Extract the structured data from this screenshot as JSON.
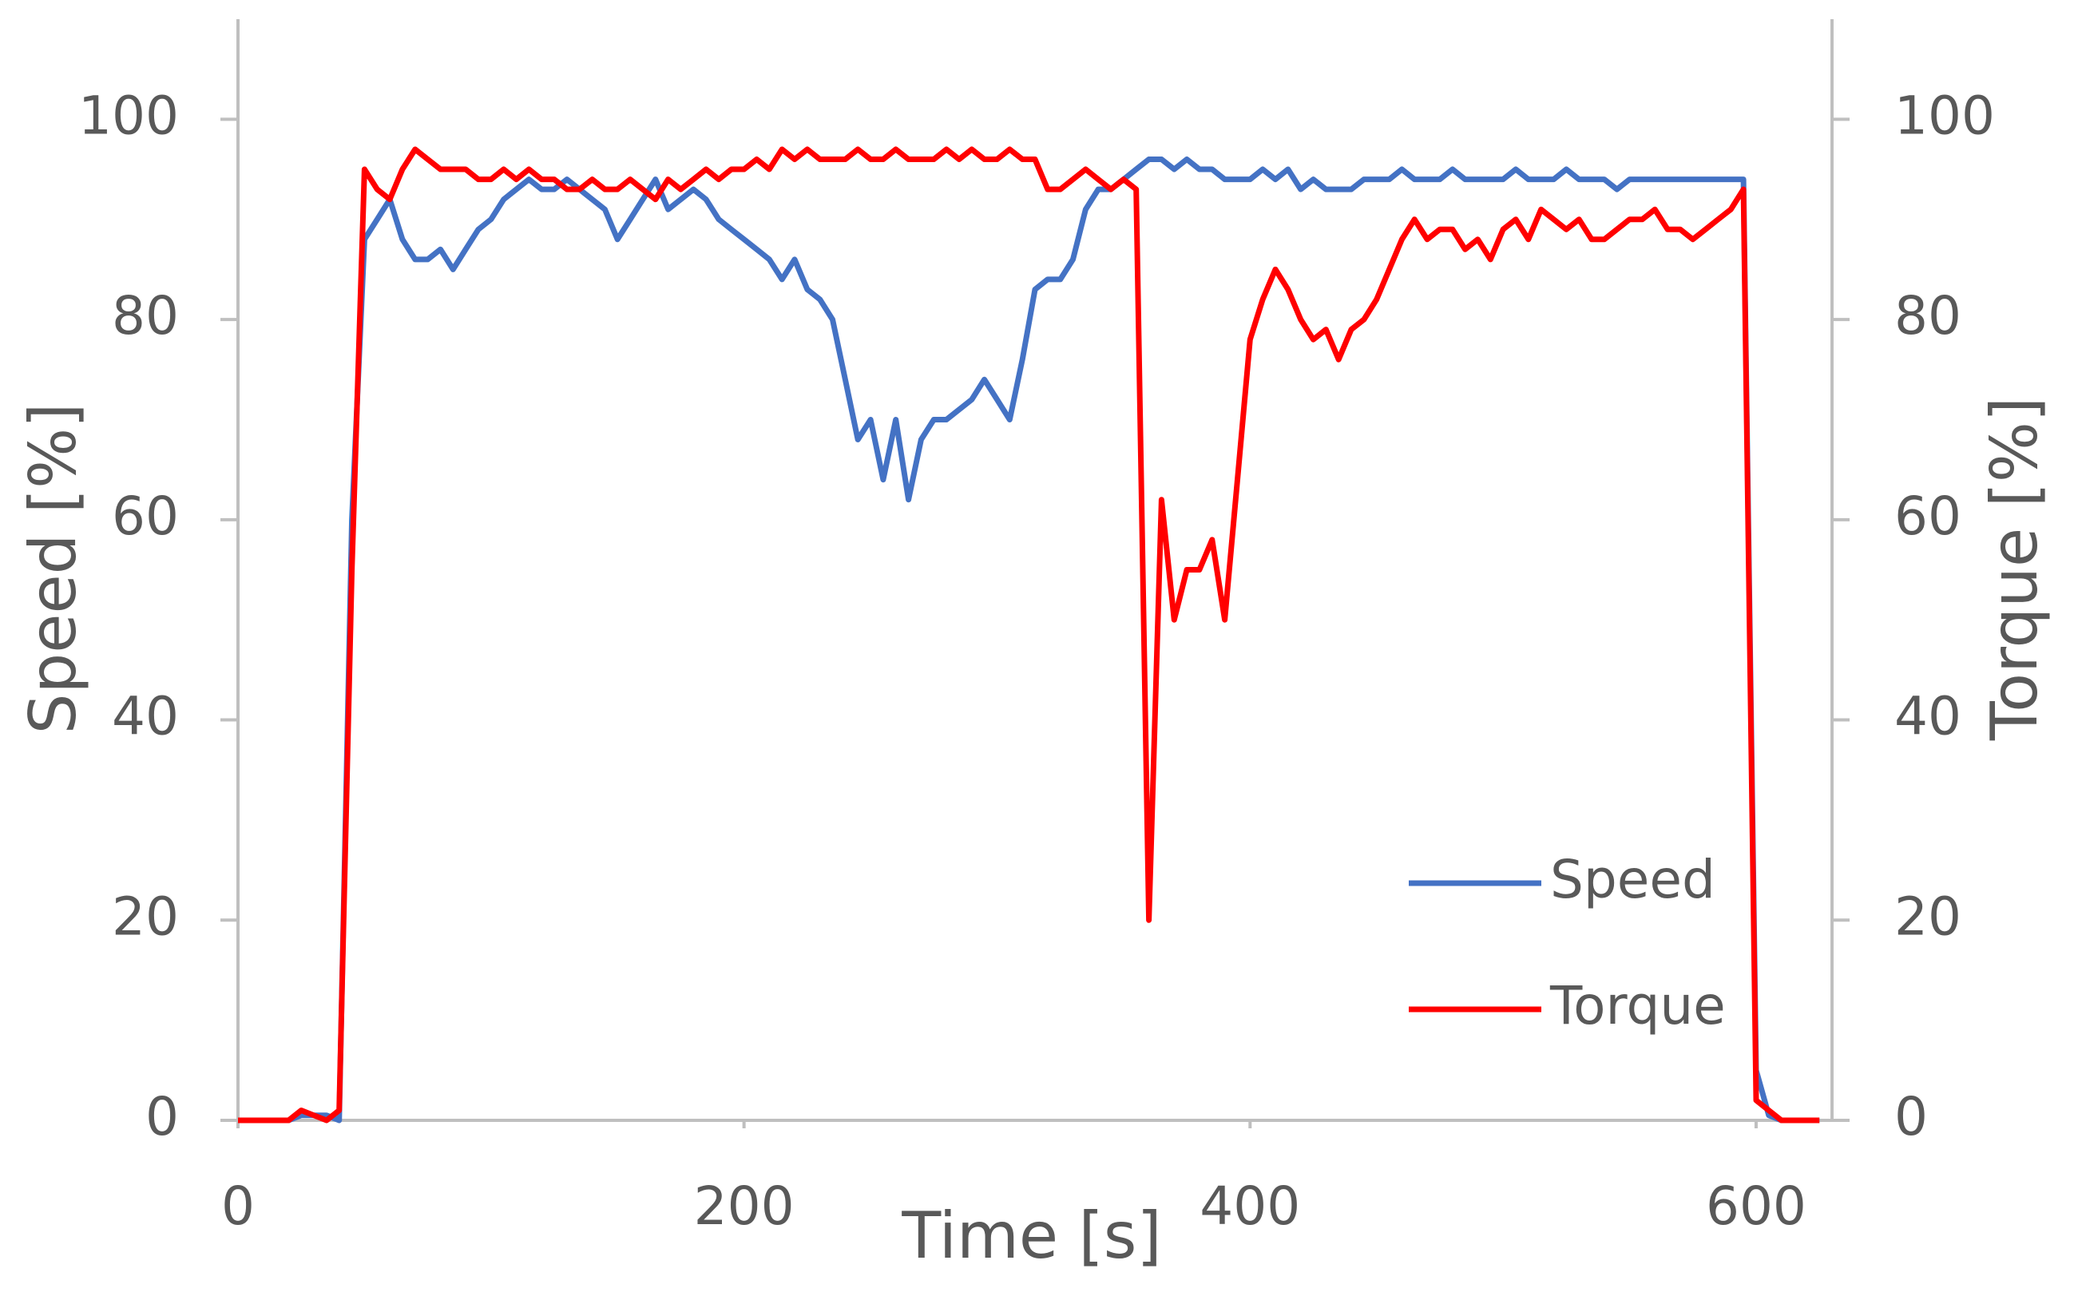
{
  "chart_data": {
    "type": "line",
    "x_label": "Time [s]",
    "y_label": "Speed [%]",
    "y2_label": "Torque [%]",
    "x": [
      0,
      5,
      10,
      15,
      20,
      25,
      30,
      35,
      40,
      45,
      50,
      55,
      60,
      65,
      70,
      75,
      80,
      85,
      90,
      95,
      100,
      105,
      110,
      115,
      120,
      125,
      130,
      135,
      140,
      145,
      150,
      155,
      160,
      165,
      170,
      175,
      180,
      185,
      190,
      195,
      200,
      205,
      210,
      215,
      220,
      225,
      230,
      235,
      240,
      245,
      250,
      255,
      260,
      265,
      270,
      275,
      280,
      285,
      290,
      295,
      300,
      305,
      310,
      315,
      320,
      325,
      330,
      335,
      340,
      345,
      350,
      355,
      360,
      365,
      370,
      375,
      380,
      385,
      390,
      395,
      400,
      405,
      410,
      415,
      420,
      425,
      430,
      435,
      440,
      445,
      450,
      455,
      460,
      465,
      470,
      475,
      480,
      485,
      490,
      495,
      500,
      505,
      510,
      515,
      520,
      525,
      530,
      535,
      540,
      545,
      550,
      555,
      560,
      565,
      570,
      575,
      580,
      585,
      590,
      595,
      600,
      605,
      610,
      615,
      620,
      625
    ],
    "series": [
      {
        "name": "Speed",
        "color": "#4472c4",
        "axis": "y",
        "values": [
          0,
          0,
          0,
          0,
          0,
          0.5,
          0.5,
          0.5,
          0,
          60,
          88,
          90,
          92,
          88,
          86,
          86,
          87,
          85,
          87,
          89,
          90,
          92,
          93,
          94,
          93,
          93,
          94,
          93,
          92,
          91,
          88,
          90,
          92,
          94,
          91,
          92,
          93,
          92,
          90,
          89,
          88,
          87,
          86,
          84,
          86,
          83,
          82,
          80,
          74,
          68,
          70,
          64,
          70,
          62,
          68,
          70,
          70,
          71,
          72,
          74,
          72,
          70,
          76,
          83,
          84,
          84,
          86,
          91,
          93,
          93,
          94,
          95,
          96,
          96,
          95,
          96,
          95,
          95,
          94,
          94,
          94,
          95,
          94,
          95,
          93,
          94,
          93,
          93,
          93,
          94,
          94,
          94,
          95,
          94,
          94,
          94,
          95,
          94,
          94,
          94,
          94,
          95,
          94,
          94,
          94,
          95,
          94,
          94,
          94,
          93,
          94,
          94,
          94,
          94,
          94,
          94,
          94,
          94,
          94,
          94,
          5,
          0.5,
          0,
          0,
          0,
          0
        ]
      },
      {
        "name": "Torque",
        "color": "#ff0000",
        "axis": "y2",
        "values": [
          0,
          0,
          0,
          0,
          0,
          1,
          0.5,
          0,
          1,
          55,
          95,
          93,
          92,
          95,
          97,
          96,
          95,
          95,
          95,
          94,
          94,
          95,
          94,
          95,
          94,
          94,
          93,
          93,
          94,
          93,
          93,
          94,
          93,
          92,
          94,
          93,
          94,
          95,
          94,
          95,
          95,
          96,
          95,
          97,
          96,
          97,
          96,
          96,
          96,
          97,
          96,
          96,
          97,
          96,
          96,
          96,
          97,
          96,
          97,
          96,
          96,
          97,
          96,
          96,
          93,
          93,
          94,
          95,
          94,
          93,
          94,
          93,
          20,
          62,
          50,
          55,
          55,
          58,
          50,
          64,
          78,
          82,
          85,
          83,
          80,
          78,
          79,
          76,
          79,
          80,
          82,
          85,
          88,
          90,
          88,
          89,
          89,
          87,
          88,
          86,
          89,
          90,
          88,
          91,
          90,
          89,
          90,
          88,
          88,
          89,
          90,
          90,
          91,
          89,
          89,
          88,
          89,
          90,
          91,
          93,
          2,
          1,
          0,
          0,
          0,
          0
        ]
      }
    ],
    "xlim": [
      0,
      630
    ],
    "xticks": [
      0,
      200,
      400,
      600
    ],
    "ylim": [
      0,
      110
    ],
    "yticks": [
      0,
      20,
      40,
      60,
      80,
      100
    ],
    "y2lim": [
      0,
      110
    ],
    "y2ticks": [
      0,
      20,
      40,
      60,
      80,
      100
    ],
    "grid": false,
    "legend": "lower right"
  }
}
